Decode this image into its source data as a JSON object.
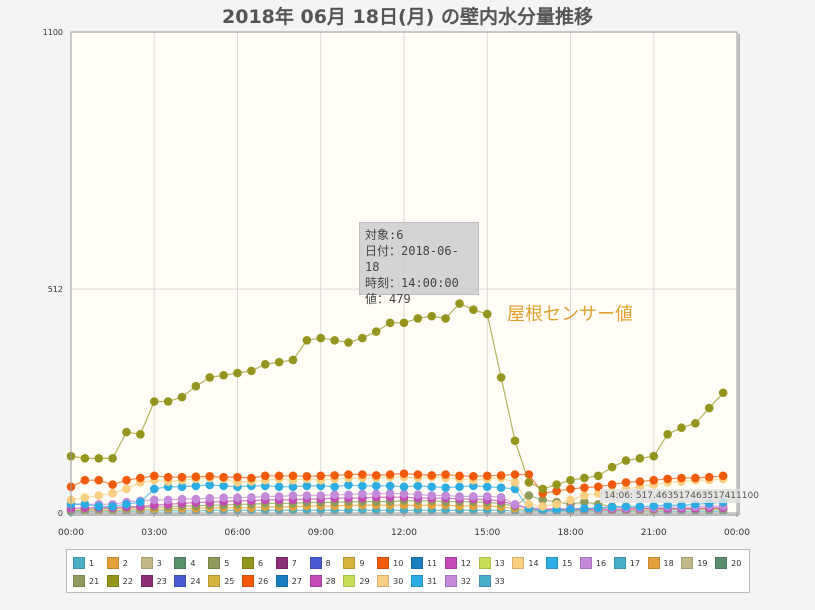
{
  "title": "2018年 06月 18日(月) の壁内水分量推移",
  "tooltip": {
    "line1": "対象:6",
    "line2": "日付：2018-06-18",
    "line3": "時刻：14:00:00",
    "line4": "値：479"
  },
  "annotation": "屋根センサー値",
  "hover_label": "14:06: 517.463517463517411100",
  "chart_data": {
    "type": "line",
    "title": "2018年 06月 18日(月) の壁内水分量推移",
    "xlabel": "",
    "ylabel": "",
    "ylim": [
      0,
      1100
    ],
    "yticks": [
      "0",
      "512",
      "1100"
    ],
    "xticks": [
      "00:00",
      "03:00",
      "06:00",
      "09:00",
      "12:00",
      "15:00",
      "18:00",
      "21:00",
      "00:00"
    ],
    "x_hours": [
      0,
      0.5,
      1,
      1.5,
      2,
      2.5,
      3,
      3.5,
      4,
      4.5,
      5,
      5.5,
      6,
      6.5,
      7,
      7.5,
      8,
      8.5,
      9,
      9.5,
      10,
      10.5,
      11,
      11.5,
      12,
      12.5,
      13,
      13.5,
      14,
      14.5,
      15,
      15.5,
      16,
      16.5,
      17,
      17.5,
      18,
      18.5,
      19,
      19.5,
      20,
      20.5,
      21,
      21.5,
      22,
      22.5,
      23,
      23.5
    ],
    "grid": true,
    "legend_position": "bottom",
    "series": [
      {
        "name": "6",
        "color": "#94941e",
        "values": [
          130,
          125,
          125,
          125,
          185,
          180,
          255,
          255,
          265,
          290,
          310,
          315,
          320,
          325,
          340,
          345,
          350,
          395,
          400,
          395,
          390,
          400,
          415,
          435,
          435,
          445,
          450,
          445,
          479,
          465,
          455,
          310,
          165,
          70,
          55,
          65,
          75,
          80,
          85,
          105,
          120,
          125,
          130,
          180,
          195,
          205,
          240,
          275
        ]
      },
      {
        "name": "10",
        "color": "#f15a0a",
        "values": [
          60,
          75,
          75,
          65,
          75,
          80,
          85,
          82,
          82,
          83,
          84,
          82,
          82,
          80,
          85,
          85,
          85,
          84,
          85,
          86,
          88,
          88,
          86,
          88,
          90,
          88,
          86,
          88,
          85,
          84,
          85,
          86,
          88,
          88,
          45,
          50,
          55,
          58,
          60,
          65,
          70,
          72,
          75,
          78,
          80,
          80,
          82,
          85
        ]
      },
      {
        "name": "14",
        "color": "#f9cf84",
        "values": [
          30,
          35,
          40,
          45,
          55,
          70,
          75,
          72,
          75,
          78,
          80,
          78,
          70,
          72,
          75,
          78,
          75,
          78,
          75,
          78,
          80,
          80,
          80,
          82,
          82,
          80,
          82,
          80,
          78,
          75,
          78,
          80,
          70,
          20,
          15,
          20,
          30,
          40,
          45,
          50,
          55,
          60,
          65,
          70,
          72,
          75,
          75,
          78
        ]
      },
      {
        "name": "15",
        "color": "#2bace2",
        "values": [
          20,
          20,
          15,
          15,
          20,
          25,
          55,
          60,
          60,
          62,
          64,
          62,
          60,
          62,
          62,
          60,
          60,
          62,
          62,
          60,
          64,
          62,
          62,
          62,
          60,
          62,
          60,
          58,
          60,
          62,
          60,
          58,
          55,
          10,
          5,
          6,
          8,
          10,
          12,
          14,
          15,
          15,
          16,
          18,
          18,
          20,
          22,
          25
        ]
      },
      {
        "name": "16",
        "color": "#c38ad9",
        "values": [
          20,
          20,
          20,
          20,
          25,
          28,
          30,
          30,
          32,
          32,
          34,
          35,
          35,
          36,
          38,
          38,
          40,
          40,
          40,
          42,
          42,
          44,
          44,
          45,
          44,
          42,
          40,
          40,
          38,
          38,
          38,
          36,
          20,
          12,
          10,
          10,
          10,
          10,
          10,
          12,
          12,
          12,
          12,
          14,
          14,
          14,
          16,
          16
        ]
      },
      {
        "name": "12",
        "color": "#c24bb5",
        "values": [
          10,
          12,
          12,
          12,
          14,
          15,
          18,
          20,
          22,
          24,
          25,
          26,
          28,
          28,
          30,
          30,
          30,
          32,
          32,
          34,
          34,
          34,
          36,
          36,
          36,
          34,
          34,
          34,
          32,
          32,
          30,
          28,
          18,
          10,
          8,
          8,
          8,
          8,
          8,
          8,
          8,
          10,
          10,
          10,
          10,
          10,
          12,
          12
        ]
      },
      {
        "name": "5",
        "color": "#8e9b5c",
        "values": [
          5,
          8,
          10,
          10,
          12,
          12,
          14,
          14,
          16,
          16,
          18,
          18,
          20,
          20,
          22,
          22,
          22,
          24,
          24,
          24,
          26,
          26,
          26,
          26,
          28,
          28,
          28,
          26,
          26,
          26,
          24,
          22,
          15,
          40,
          30,
          25,
          20,
          25,
          20,
          15,
          12,
          10,
          10,
          10,
          10,
          10,
          10,
          10
        ]
      },
      {
        "name": "2",
        "color": "#e2a13a",
        "values": [
          5,
          6,
          6,
          6,
          8,
          8,
          8,
          10,
          10,
          10,
          12,
          12,
          12,
          12,
          14,
          14,
          14,
          16,
          16,
          16,
          18,
          18,
          18,
          18,
          18,
          18,
          18,
          18,
          16,
          16,
          16,
          14,
          10,
          6,
          6,
          6,
          6,
          6,
          6,
          6,
          6,
          6,
          6,
          8,
          8,
          8,
          8,
          8
        ]
      },
      {
        "name": "1",
        "color": "#48afc6",
        "values": [
          3,
          3,
          4,
          4,
          4,
          4,
          5,
          5,
          5,
          5,
          6,
          6,
          6,
          6,
          6,
          6,
          6,
          6,
          6,
          6,
          6,
          6,
          6,
          6,
          6,
          6,
          6,
          6,
          6,
          6,
          6,
          6,
          5,
          4,
          4,
          4,
          4,
          4,
          4,
          4,
          4,
          4,
          4,
          4,
          4,
          4,
          4,
          4
        ]
      }
    ]
  },
  "legend": {
    "row1": [
      {
        "label": "1",
        "color": "#48afc6"
      },
      {
        "label": "2",
        "color": "#e2a13a"
      },
      {
        "label": "3",
        "color": "#c3b88a"
      },
      {
        "label": "4",
        "color": "#5a8f6e"
      },
      {
        "label": "5",
        "color": "#8e9b5c"
      },
      {
        "label": "6",
        "color": "#94941e"
      },
      {
        "label": "7",
        "color": "#8a2e78"
      },
      {
        "label": "8",
        "color": "#4a5ad0"
      },
      {
        "label": "9",
        "color": "#d4b43c"
      },
      {
        "label": "10",
        "color": "#f15a0a"
      },
      {
        "label": "11",
        "color": "#1a7fc0"
      },
      {
        "label": "12",
        "color": "#c24bb5"
      },
      {
        "label": "13",
        "color": "#c8df5a"
      },
      {
        "label": "14",
        "color": "#f9cf84"
      },
      {
        "label": "15",
        "color": "#2bace2"
      },
      {
        "label": "16",
        "color": "#c38ad9"
      },
      {
        "label": "17",
        "color": "#48afc6"
      },
      {
        "label": "18",
        "color": "#e2a13a"
      },
      {
        "label": "19",
        "color": "#c3b88a"
      },
      {
        "label": "20",
        "color": "#5a8f6e"
      }
    ],
    "row2": [
      {
        "label": "21",
        "color": "#8e9b5c"
      },
      {
        "label": "22",
        "color": "#94941e"
      },
      {
        "label": "23",
        "color": "#8a2e78"
      },
      {
        "label": "24",
        "color": "#4a5ad0"
      },
      {
        "label": "25",
        "color": "#d4b43c"
      },
      {
        "label": "26",
        "color": "#f15a0a"
      },
      {
        "label": "27",
        "color": "#1a7fc0"
      },
      {
        "label": "28",
        "color": "#c24bb5"
      },
      {
        "label": "29",
        "color": "#c8df5a"
      },
      {
        "label": "30",
        "color": "#f9cf84"
      },
      {
        "label": "31",
        "color": "#2bace2"
      },
      {
        "label": "32",
        "color": "#c38ad9"
      },
      {
        "label": "33",
        "color": "#48afc6"
      }
    ]
  }
}
